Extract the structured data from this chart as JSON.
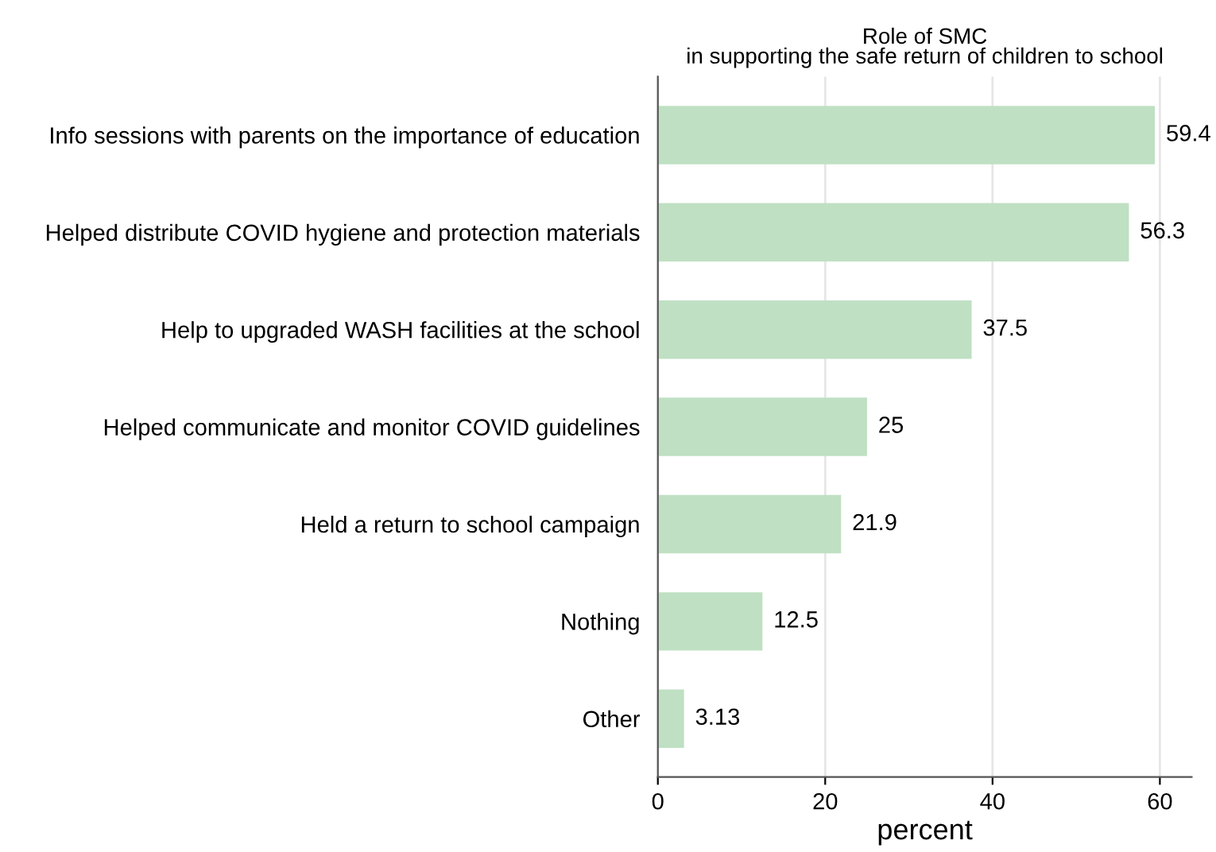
{
  "chart_data": {
    "type": "bar",
    "orientation": "horizontal",
    "title": "Role of SMC\nin supporting the safe return of children to school",
    "xlabel": "percent",
    "categories": [
      "Info sessions with parents on the importance of education",
      "Helped distribute COVID hygiene and protection materials",
      "Help to upgraded WASH facilities at the school",
      "Helped communicate and monitor COVID guidelines",
      "Held a return to school campaign",
      "Nothing",
      "Other"
    ],
    "values": [
      59.4,
      56.3,
      37.5,
      25,
      21.9,
      12.5,
      3.13
    ],
    "color": "#bfe0c3",
    "xlim": [
      0,
      63.8
    ],
    "xticks": [
      0,
      20,
      40,
      60
    ],
    "grid": "x",
    "data_labels": true
  }
}
